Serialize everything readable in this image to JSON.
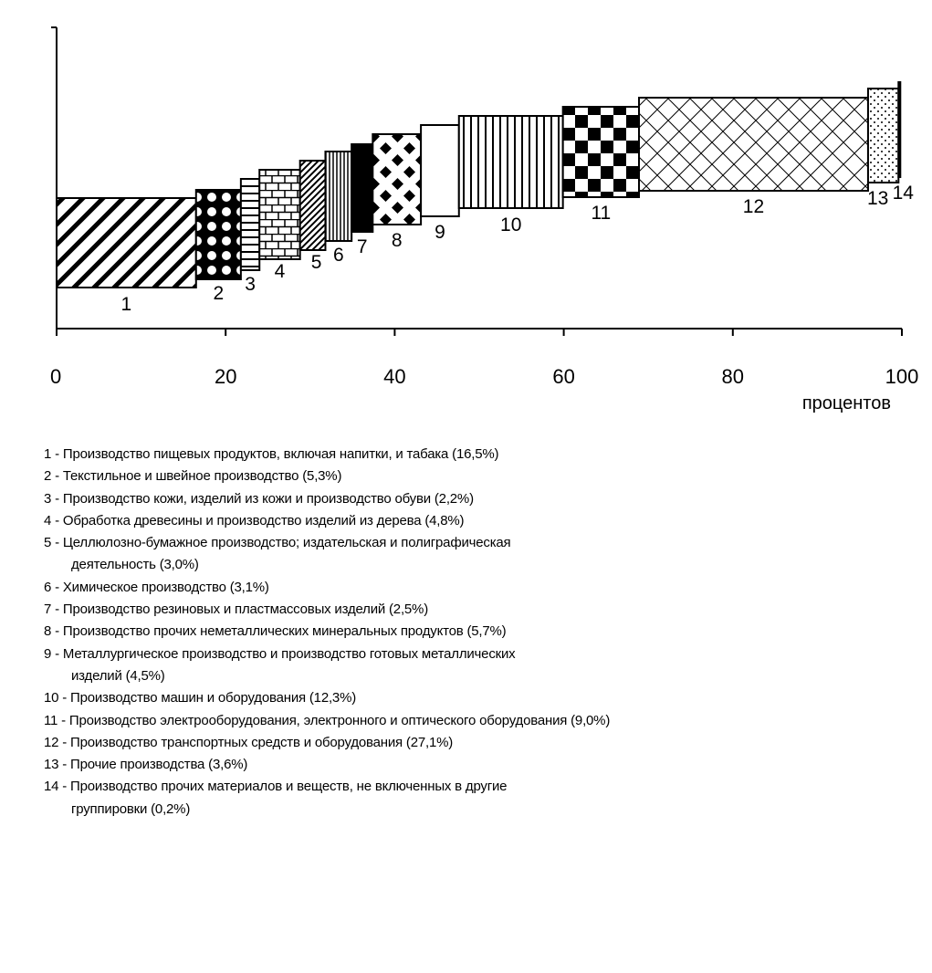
{
  "chart_data": {
    "type": "bar",
    "title": "",
    "xlabel": "процентов",
    "ylabel": "",
    "xlim": [
      0,
      100
    ],
    "x_ticks": [
      "0",
      "20",
      "40",
      "60",
      "80",
      "100"
    ],
    "grid": false,
    "legend_position": "below",
    "categories": [
      "1",
      "2",
      "3",
      "4",
      "5",
      "6",
      "7",
      "8",
      "9",
      "10",
      "11",
      "12",
      "13",
      "14"
    ],
    "values": [
      16.5,
      5.3,
      2.2,
      4.8,
      3.0,
      3.1,
      2.5,
      5.7,
      4.5,
      12.3,
      9.0,
      27.1,
      3.6,
      0.2
    ],
    "series": [
      {
        "values": [
          16.5,
          5.3,
          2.2,
          4.8,
          3.0,
          3.1,
          2.5,
          5.7,
          4.5,
          12.3,
          9.0,
          27.1,
          3.6,
          0.2
        ]
      }
    ]
  },
  "legend": [
    {
      "n": "1",
      "text": "Производство пищевых продуктов, включая напитки, и табака (16,5%)"
    },
    {
      "n": "2",
      "text": "Текстильное и швейное производство (5,3%)"
    },
    {
      "n": "3",
      "text": "Производство кожи, изделий из кожи и производство обуви (2,2%)"
    },
    {
      "n": "4",
      "text": "Обработка древесины и производство изделий из дерева (4,8%)"
    },
    {
      "n": "5",
      "text": "Целлюлозно-бумажное производство; издательская и полиграфическая",
      "cont": "деятельность (3,0%)"
    },
    {
      "n": "6",
      "text": "Химическое производство (3,1%)"
    },
    {
      "n": "7",
      "text": "Производство резиновых и пластмассовых изделий (2,5%)"
    },
    {
      "n": "8",
      "text": "Производство прочих неметаллических минеральных продуктов (5,7%)"
    },
    {
      "n": "9",
      "text": "Металлургическое производство и производство готовых металлических",
      "cont": "изделий (4,5%)"
    },
    {
      "n": "10",
      "text": "Производство машин и оборудования (12,3%)"
    },
    {
      "n": "11",
      "text": "Производство электрооборудования, электронного и оптического оборудования (9,0%)"
    },
    {
      "n": "12",
      "text": "Производство транспортных средств и оборудования (27,1%)"
    },
    {
      "n": "13",
      "text": "Прочие производства (3,6%)"
    },
    {
      "n": "14",
      "text": "Производство прочих материалов и веществ, не включенных в другие",
      "cont": "группировки (0,2%)"
    }
  ]
}
